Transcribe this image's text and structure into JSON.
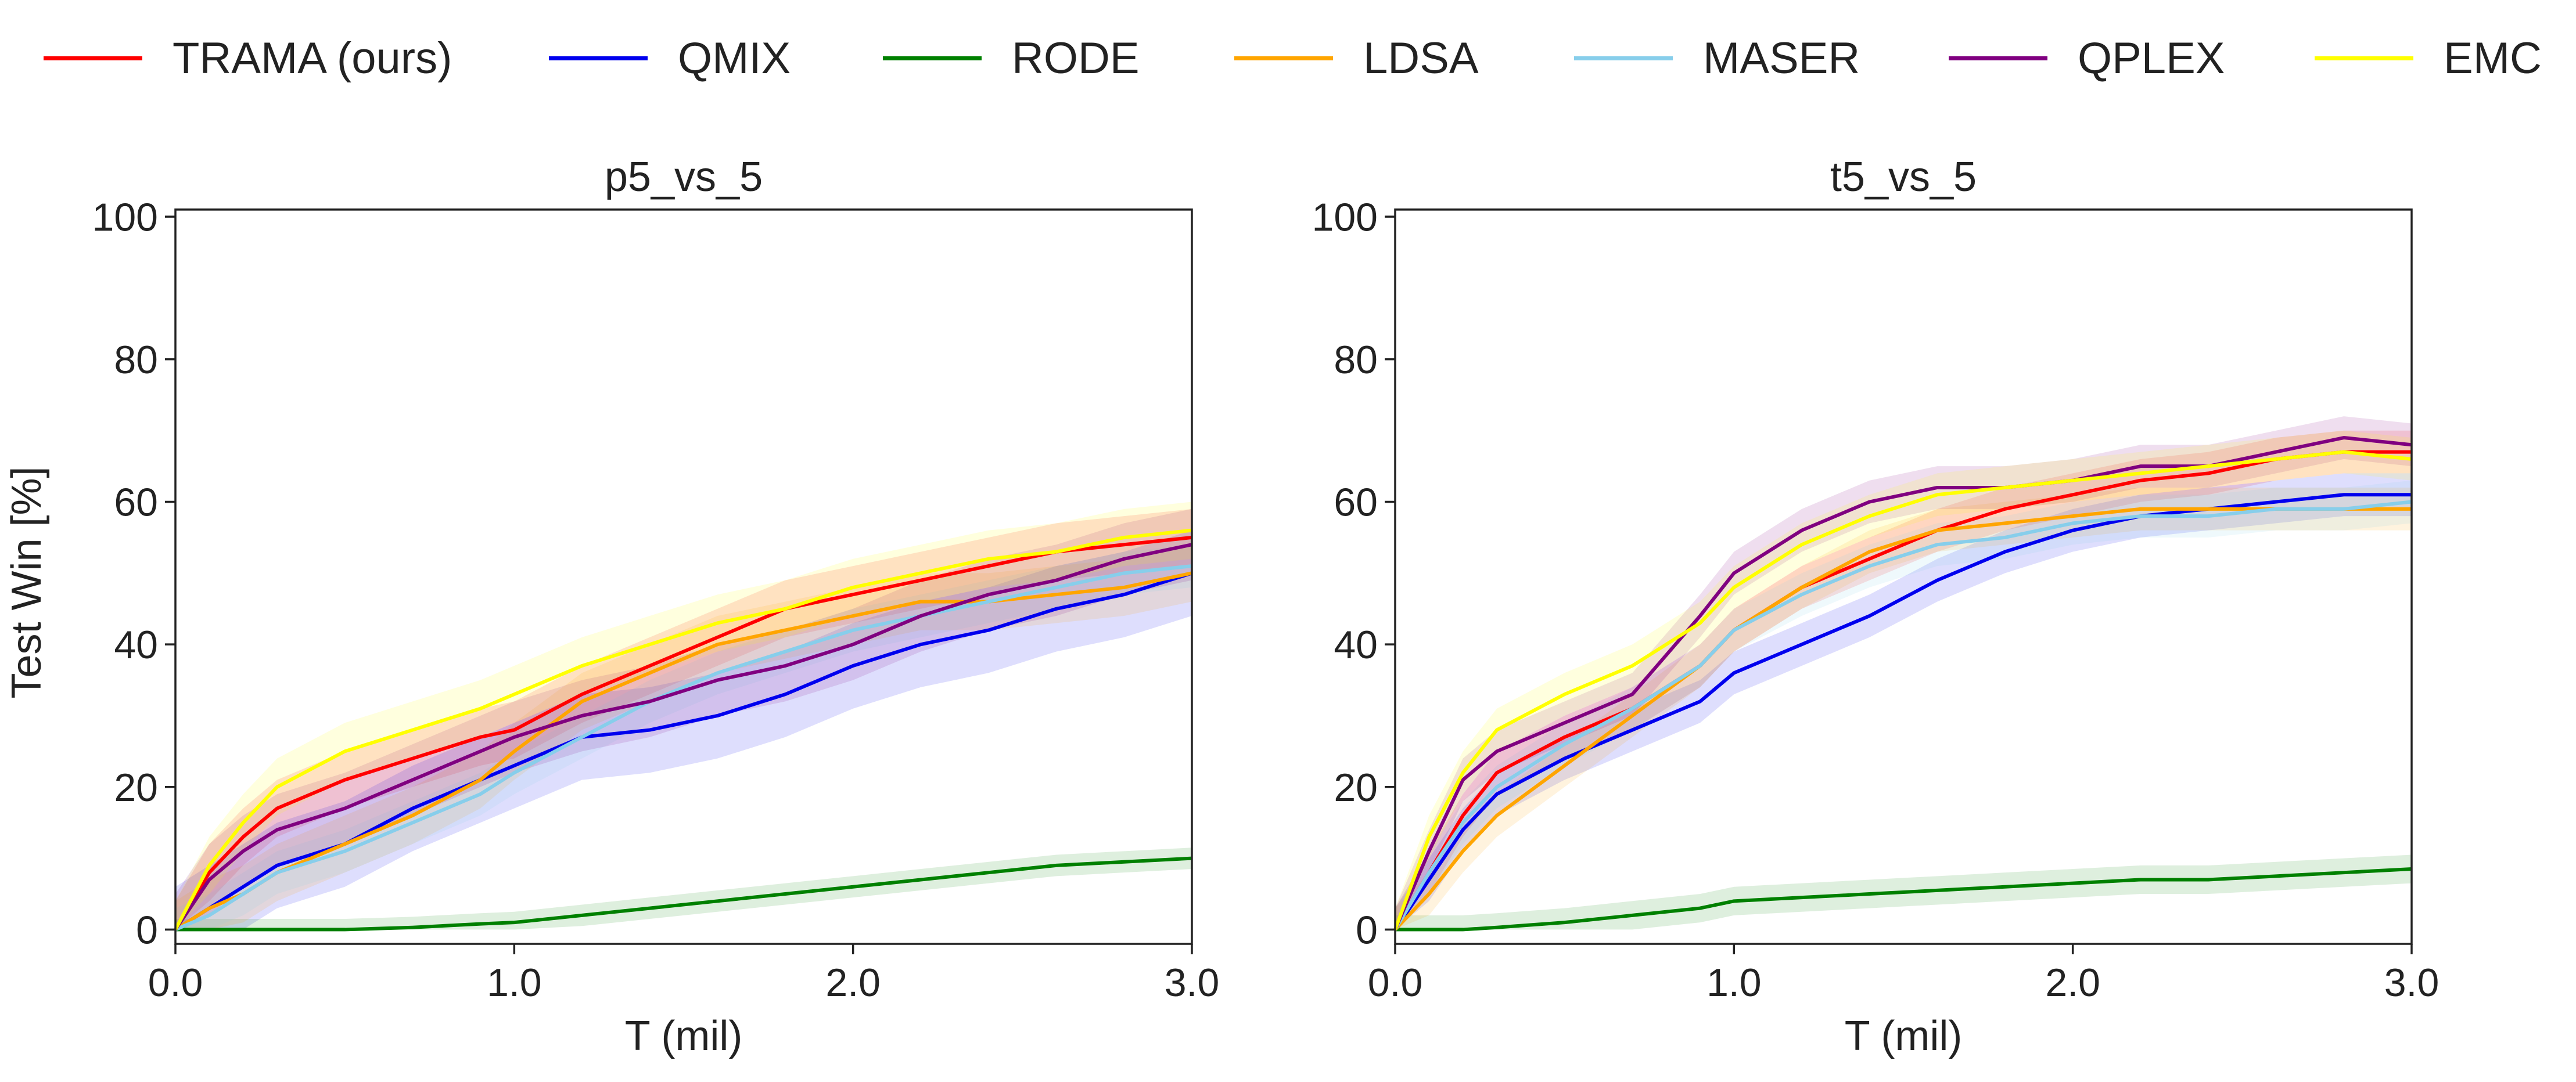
{
  "legend": [
    {
      "label": "TRAMA (ours)",
      "color": "#ff0000"
    },
    {
      "label": "QMIX",
      "color": "#0000ee"
    },
    {
      "label": "RODE",
      "color": "#008000"
    },
    {
      "label": "LDSA",
      "color": "#ffa500"
    },
    {
      "label": "MASER",
      "color": "#87ceeb"
    },
    {
      "label": "QPLEX",
      "color": "#800080"
    },
    {
      "label": "EMC",
      "color": "#ffff00"
    }
  ],
  "chart_data": [
    {
      "type": "line",
      "title": "p5_vs_5",
      "xlabel": "T (mil)",
      "ylabel": "Test Win [%]",
      "xlim": [
        0,
        3.0
      ],
      "ylim": [
        -2,
        101
      ],
      "xticks": [
        "0.0",
        "1.0",
        "2.0",
        "3.0"
      ],
      "yticks": [
        "0",
        "20",
        "40",
        "60",
        "80",
        "100"
      ],
      "x": [
        0,
        0.1,
        0.2,
        0.3,
        0.5,
        0.7,
        0.9,
        1.0,
        1.2,
        1.4,
        1.6,
        1.8,
        2.0,
        2.2,
        2.4,
        2.6,
        2.8,
        3.0
      ],
      "series": [
        {
          "name": "TRAMA (ours)",
          "color": "#ff0000",
          "band": 4,
          "values": [
            0,
            8,
            13,
            17,
            21,
            24,
            27,
            28,
            33,
            37,
            41,
            45,
            47,
            49,
            51,
            53,
            54,
            55
          ]
        },
        {
          "name": "QMIX",
          "color": "#0000ee",
          "band": 6,
          "values": [
            0,
            3,
            6,
            9,
            12,
            17,
            21,
            23,
            27,
            28,
            30,
            33,
            37,
            40,
            42,
            45,
            47,
            50
          ]
        },
        {
          "name": "RODE",
          "color": "#008000",
          "band": 1.5,
          "values": [
            0,
            0,
            0,
            0,
            0,
            0.3,
            0.8,
            1,
            2,
            3,
            4,
            5,
            6,
            7,
            8,
            9,
            9.5,
            10
          ]
        },
        {
          "name": "LDSA",
          "color": "#ffa500",
          "band": 4,
          "values": [
            0,
            3,
            5,
            8,
            12,
            16,
            21,
            25,
            32,
            36,
            40,
            42,
            44,
            46,
            46,
            47,
            48,
            50
          ]
        },
        {
          "name": "MASER",
          "color": "#87ceeb",
          "band": 3,
          "values": [
            0,
            2,
            5,
            8,
            11,
            15,
            19,
            22,
            27,
            32,
            36,
            39,
            42,
            44,
            46,
            48,
            50,
            51
          ]
        },
        {
          "name": "QPLEX",
          "color": "#800080",
          "band": 5,
          "values": [
            0,
            7,
            11,
            14,
            17,
            21,
            25,
            27,
            30,
            32,
            35,
            37,
            40,
            44,
            47,
            49,
            52,
            54
          ]
        },
        {
          "name": "EMC",
          "color": "#ffff00",
          "band": 4,
          "values": [
            0,
            9,
            15,
            20,
            25,
            28,
            31,
            33,
            37,
            40,
            43,
            45,
            48,
            50,
            52,
            53,
            55,
            56
          ]
        }
      ]
    },
    {
      "type": "line",
      "title": "t5_vs_5",
      "xlabel": "T (mil)",
      "ylabel": "",
      "xlim": [
        0,
        3.0
      ],
      "ylim": [
        -2,
        101
      ],
      "xticks": [
        "0.0",
        "1.0",
        "2.0",
        "3.0"
      ],
      "yticks": [
        "0",
        "20",
        "40",
        "60",
        "80",
        "100"
      ],
      "x": [
        0,
        0.1,
        0.2,
        0.3,
        0.5,
        0.7,
        0.9,
        1.0,
        1.2,
        1.4,
        1.6,
        1.8,
        2.0,
        2.2,
        2.4,
        2.6,
        2.8,
        3.0
      ],
      "series": [
        {
          "name": "TRAMA (ours)",
          "color": "#ff0000",
          "band": 3,
          "values": [
            0,
            8,
            16,
            22,
            27,
            31,
            37,
            42,
            48,
            52,
            56,
            59,
            61,
            63,
            64,
            66,
            67,
            67
          ]
        },
        {
          "name": "QMIX",
          "color": "#0000ee",
          "band": 3,
          "values": [
            0,
            7,
            14,
            19,
            24,
            28,
            32,
            36,
            40,
            44,
            49,
            53,
            56,
            58,
            59,
            60,
            61,
            61
          ]
        },
        {
          "name": "RODE",
          "color": "#008000",
          "band": 2,
          "values": [
            0,
            0,
            0,
            0.3,
            1,
            2,
            3,
            4,
            4.5,
            5,
            5.5,
            6,
            6.5,
            7,
            7,
            7.5,
            8,
            8.5
          ]
        },
        {
          "name": "LDSA",
          "color": "#ffa500",
          "band": 3,
          "values": [
            0,
            5,
            11,
            16,
            23,
            30,
            37,
            42,
            48,
            53,
            56,
            57,
            58,
            59,
            59,
            59,
            59,
            59
          ]
        },
        {
          "name": "MASER",
          "color": "#87ceeb",
          "band": 3,
          "values": [
            0,
            8,
            15,
            20,
            26,
            31,
            37,
            42,
            47,
            51,
            54,
            55,
            57,
            58,
            58,
            59,
            59,
            60
          ]
        },
        {
          "name": "QPLEX",
          "color": "#800080",
          "band": 3,
          "values": [
            0,
            11,
            21,
            25,
            29,
            33,
            44,
            50,
            56,
            60,
            62,
            62,
            63,
            65,
            65,
            67,
            69,
            68
          ]
        },
        {
          "name": "EMC",
          "color": "#ffff00",
          "band": 3,
          "values": [
            0,
            13,
            22,
            28,
            33,
            37,
            43,
            48,
            54,
            58,
            61,
            62,
            63,
            64,
            65,
            66,
            67,
            66
          ]
        }
      ]
    }
  ]
}
